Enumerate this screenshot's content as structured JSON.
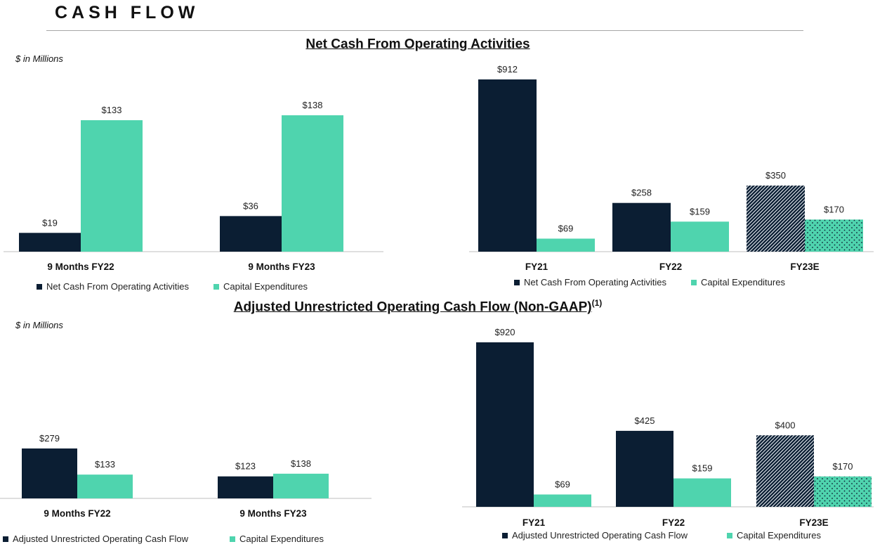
{
  "page": {
    "title": "CASH FLOW"
  },
  "sections": [
    {
      "title": "Net Cash From Operating Activities",
      "superscript": "",
      "units": "$ in Millions"
    },
    {
      "title": "Adjusted Unrestricted Operating Cash Flow (Non-GAAP)",
      "superscript": "(1)",
      "units": "$ in Millions"
    }
  ],
  "colors": {
    "dark": "#0b1e33",
    "teal": "#4fd4ae",
    "axis": "#bfbfbf"
  },
  "chart_data": [
    {
      "type": "bar",
      "categories": [
        "9 Months FY22",
        "9 Months FY23"
      ],
      "series": [
        {
          "name": "Net Cash From Operating Activities",
          "values": [
            19,
            36
          ],
          "labels": [
            "$19",
            "$36"
          ]
        },
        {
          "name": "Capital Expenditures",
          "values": [
            133,
            138
          ],
          "labels": [
            "$133",
            "$138"
          ]
        }
      ],
      "ylim": [
        0,
        380
      ]
    },
    {
      "type": "bar",
      "categories": [
        "FY21",
        "FY22",
        "FY23E"
      ],
      "series": [
        {
          "name": "Net Cash From Operating Activities",
          "values": [
            912,
            258,
            350
          ],
          "labels": [
            "$912",
            "$258",
            "$350"
          ]
        },
        {
          "name": "Capital Expenditures",
          "values": [
            69,
            159,
            170
          ],
          "labels": [
            "$69",
            "$159",
            "$170"
          ]
        }
      ],
      "patterned_categories": [
        "FY23E"
      ],
      "ylim": [
        0,
        1000
      ]
    },
    {
      "type": "bar",
      "categories": [
        "9 Months FY22",
        "9 Months FY23"
      ],
      "series": [
        {
          "name": "Adjusted Unrestricted Operating Cash Flow",
          "values": [
            279,
            123
          ],
          "labels": [
            "$279",
            "$123"
          ]
        },
        {
          "name": "Capital Expenditures",
          "values": [
            133,
            138
          ],
          "labels": [
            "$133",
            "$138"
          ]
        }
      ],
      "ylim": [
        0,
        800
      ]
    },
    {
      "type": "bar",
      "categories": [
        "FY21",
        "FY22",
        "FY23E"
      ],
      "series": [
        {
          "name": "Adjusted Unrestricted Operating Cash Flow",
          "values": [
            920,
            425,
            400
          ],
          "labels": [
            "$920",
            "$425",
            "$400"
          ]
        },
        {
          "name": "Capital Expenditures",
          "values": [
            69,
            159,
            170
          ],
          "labels": [
            "$69",
            "$159",
            "$170"
          ]
        }
      ],
      "patterned_categories": [
        "FY23E"
      ],
      "ylim": [
        0,
        1000
      ]
    }
  ]
}
